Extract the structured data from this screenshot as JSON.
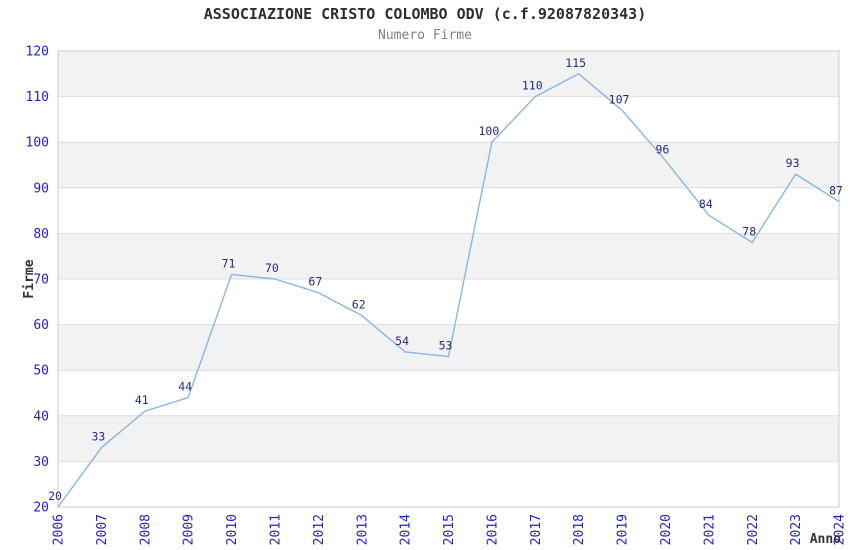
{
  "chart_data": {
    "type": "line",
    "title": "ASSOCIAZIONE CRISTO COLOMBO ODV (c.f.92087820343)",
    "subtitle": "Numero Firme",
    "xlabel": "Anno",
    "ylabel": "Firme",
    "categories": [
      "2006",
      "2007",
      "2008",
      "2009",
      "2010",
      "2011",
      "2012",
      "2013",
      "2014",
      "2015",
      "2016",
      "2017",
      "2018",
      "2019",
      "2020",
      "2021",
      "2022",
      "2023",
      "2024"
    ],
    "values": [
      20,
      33,
      41,
      44,
      71,
      70,
      67,
      62,
      54,
      53,
      100,
      110,
      115,
      107,
      96,
      84,
      78,
      93,
      87
    ],
    "ylim": [
      20,
      120
    ],
    "ytick_step": 10,
    "grid": true,
    "legend": "none",
    "data_labels": true,
    "band_fill": "alternating-horizontal",
    "x_tick_rotation": 90,
    "colors": {
      "line": "#87B6E8",
      "axis_tick_label": "#2222CC",
      "data_label": "#28288A",
      "band": "#F2F2F2",
      "gridline": "#DDDDDD",
      "plot_border": "#CCCCCC",
      "title": "#2E2E2E",
      "subtitle": "#808080",
      "axis_title": "#333333"
    }
  }
}
